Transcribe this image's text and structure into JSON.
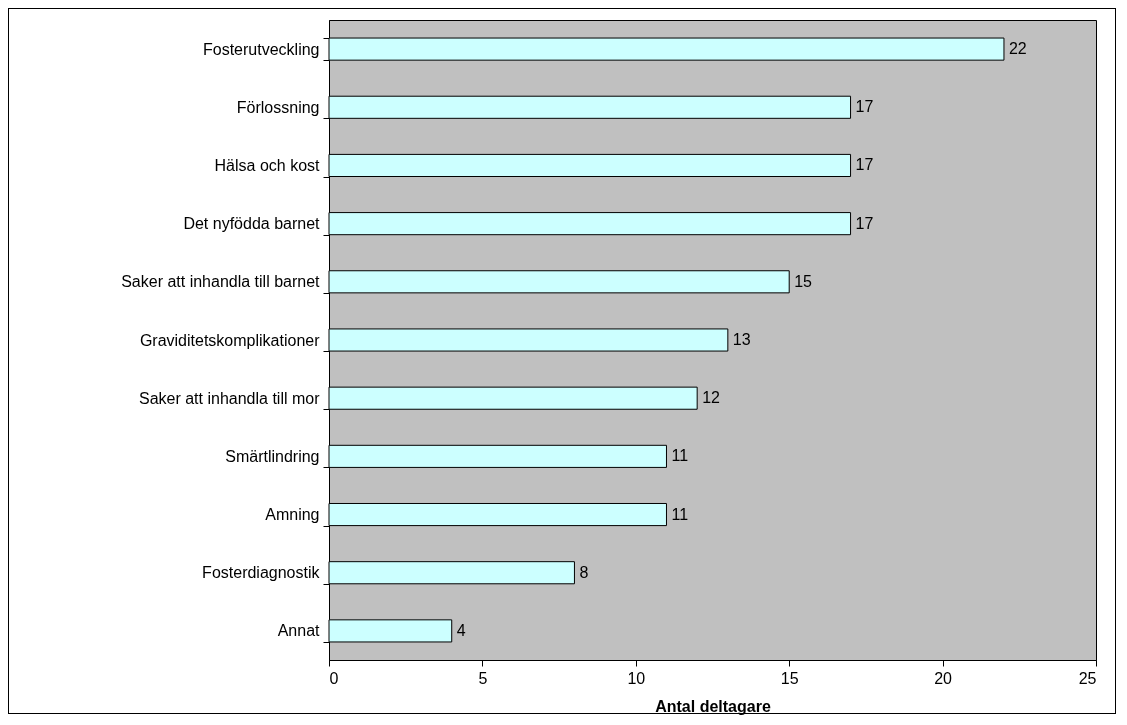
{
  "chart_data": {
    "type": "bar",
    "orientation": "horizontal",
    "xlabel": "Antal deltagare",
    "categories": [
      "Fosterutveckling",
      "Förlossning",
      "Hälsa och kost",
      "Det nyfödda barnet",
      "Saker att inhandla till barnet",
      "Graviditetskomplikationer",
      "Saker att inhandla till mor",
      "Smärtlindring",
      "Amning",
      "Fosterdiagnostik",
      "Annat"
    ],
    "values": [
      22,
      17,
      17,
      17,
      15,
      13,
      12,
      11,
      11,
      8,
      4
    ],
    "color": "#ccffff",
    "xlim": [
      0,
      25
    ],
    "xticks": [
      0,
      5,
      10,
      15,
      20,
      25
    ],
    "grid": false,
    "data_labels": true
  }
}
